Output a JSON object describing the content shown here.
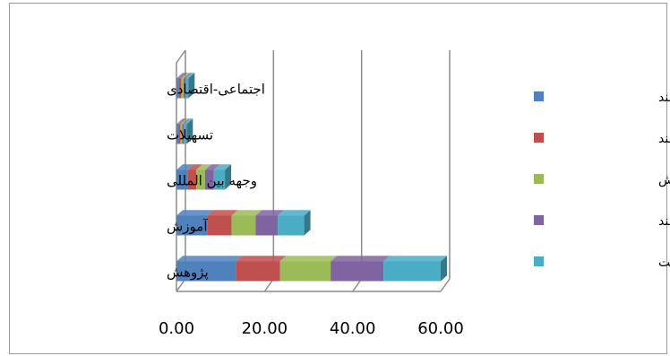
{
  "chart_data": {
    "type": "bar",
    "orientation": "horizontal",
    "stacked": true,
    "three_d": true,
    "categories": [
      "پژوهش",
      "آموزش",
      "وجهه بین المللی",
      "تسهیلات",
      "اجتماعی-اقتصادی"
    ],
    "series": [
      {
        "name": "مدیریت هوشمند",
        "color": "#4f81bd",
        "values": [
          13.5,
          7.0,
          2.5,
          0.5,
          0.6
        ]
      },
      {
        "name": "افراد هوشمند",
        "color": "#c0504d",
        "values": [
          10.0,
          5.5,
          2.0,
          0.4,
          0.5
        ]
      },
      {
        "name": "شبکه دانش",
        "color": "#9bbb59",
        "values": [
          11.5,
          5.5,
          2.0,
          0.4,
          0.5
        ]
      },
      {
        "name": "محیط هوشمند",
        "color": "#8064a2",
        "values": [
          12.0,
          5.0,
          2.0,
          0.4,
          0.5
        ]
      },
      {
        "name": "زیرساخت",
        "color": "#4bacc6",
        "values": [
          13.0,
          6.0,
          2.5,
          0.6,
          0.6
        ]
      }
    ],
    "xaxis": {
      "ticks": [
        "0.00",
        "20.00",
        "40.00",
        "60.00"
      ],
      "range": [
        0,
        60
      ]
    },
    "grid": true,
    "legend_position": "right",
    "title": "",
    "xlabel": "",
    "ylabel": ""
  }
}
